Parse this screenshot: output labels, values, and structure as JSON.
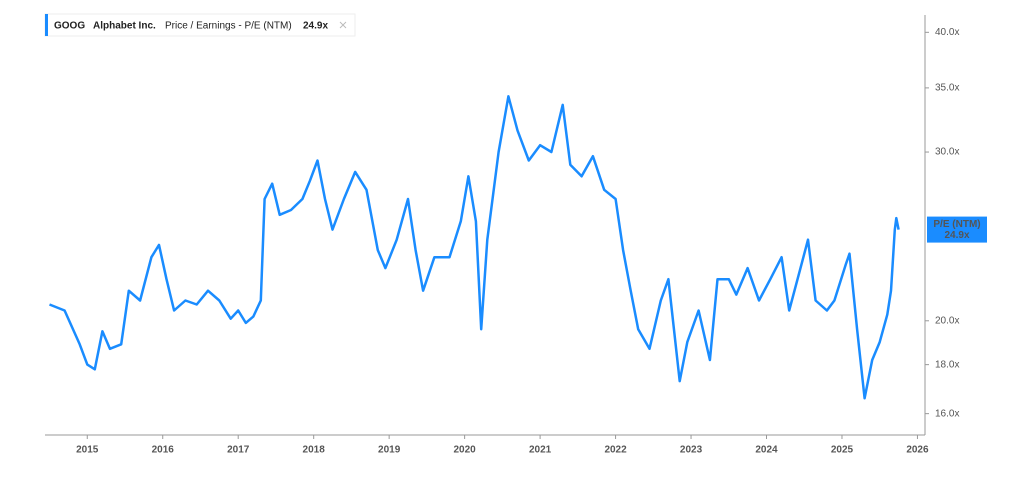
{
  "chart_data": {
    "type": "line",
    "header": {
      "ticker": "GOOG",
      "company": "Alphabet Inc.",
      "metric": "Price / Earnings - P/E (NTM)",
      "value_label": "24.9x"
    },
    "x": [
      2014.5,
      2014.7,
      2014.9,
      2015.0,
      2015.1,
      2015.2,
      2015.3,
      2015.45,
      2015.55,
      2015.7,
      2015.85,
      2015.95,
      2016.05,
      2016.15,
      2016.3,
      2016.45,
      2016.6,
      2016.75,
      2016.9,
      2017.0,
      2017.1,
      2017.2,
      2017.3,
      2017.35,
      2017.45,
      2017.55,
      2017.7,
      2017.85,
      2017.95,
      2018.05,
      2018.15,
      2018.25,
      2018.4,
      2018.55,
      2018.7,
      2018.85,
      2018.95,
      2019.1,
      2019.25,
      2019.35,
      2019.45,
      2019.6,
      2019.8,
      2019.95,
      2020.05,
      2020.15,
      2020.22,
      2020.3,
      2020.45,
      2020.58,
      2020.7,
      2020.85,
      2021.0,
      2021.15,
      2021.3,
      2021.4,
      2021.55,
      2021.7,
      2021.85,
      2022.0,
      2022.1,
      2022.2,
      2022.3,
      2022.45,
      2022.6,
      2022.7,
      2022.85,
      2022.95,
      2023.1,
      2023.25,
      2023.35,
      2023.5,
      2023.6,
      2023.75,
      2023.9,
      2024.05,
      2024.2,
      2024.3,
      2024.45,
      2024.55,
      2024.65,
      2024.8,
      2024.9,
      2025.05,
      2025.1,
      2025.2,
      2025.3,
      2025.4,
      2025.5,
      2025.6,
      2025.65,
      2025.7,
      2025.72,
      2025.75
    ],
    "series": [
      {
        "name": "GOOG",
        "color": "#1a8cff",
        "values": [
          20.8,
          20.5,
          18.9,
          18.0,
          17.8,
          19.5,
          18.7,
          18.9,
          21.5,
          21.0,
          23.3,
          24.0,
          22.1,
          20.5,
          21.0,
          20.8,
          21.5,
          21.0,
          20.1,
          20.5,
          19.9,
          20.2,
          21.0,
          26.8,
          27.8,
          25.8,
          26.1,
          26.8,
          28.0,
          29.4,
          26.8,
          24.9,
          26.8,
          28.6,
          27.4,
          23.7,
          22.7,
          24.3,
          26.8,
          23.7,
          21.5,
          23.3,
          23.3,
          25.4,
          28.3,
          25.4,
          19.6,
          24.3,
          30.0,
          34.3,
          31.6,
          29.4,
          30.5,
          30.0,
          33.6,
          29.1,
          28.3,
          29.7,
          27.4,
          26.8,
          23.7,
          21.5,
          19.6,
          18.7,
          21.0,
          22.1,
          17.3,
          19.0,
          20.5,
          18.2,
          22.1,
          22.1,
          21.3,
          22.7,
          21.0,
          22.1,
          23.3,
          20.5,
          22.7,
          24.3,
          21.0,
          20.5,
          21.0,
          22.9,
          23.5,
          19.6,
          16.6,
          18.2,
          19.0,
          20.3,
          21.5,
          24.9,
          25.6,
          24.9
        ]
      }
    ],
    "badge": {
      "name": "P/E (NTM)",
      "value": 24.9,
      "label": "24.9x"
    },
    "xlim": [
      2014.44,
      2026.1
    ],
    "xticks": [
      2015,
      2016,
      2017,
      2018,
      2019,
      2020,
      2021,
      2022,
      2023,
      2024,
      2025,
      2026
    ],
    "ylim": [
      15.2,
      41.7
    ],
    "yticks": [
      {
        "value": 16,
        "label": "16.0x"
      },
      {
        "value": 18,
        "label": "18.0x"
      },
      {
        "value": 20,
        "label": "20.0x"
      },
      {
        "value": 30,
        "label": "30.0x"
      },
      {
        "value": 35,
        "label": "35.0x"
      },
      {
        "value": 40,
        "label": "40.0x"
      }
    ],
    "log_scale": true
  }
}
